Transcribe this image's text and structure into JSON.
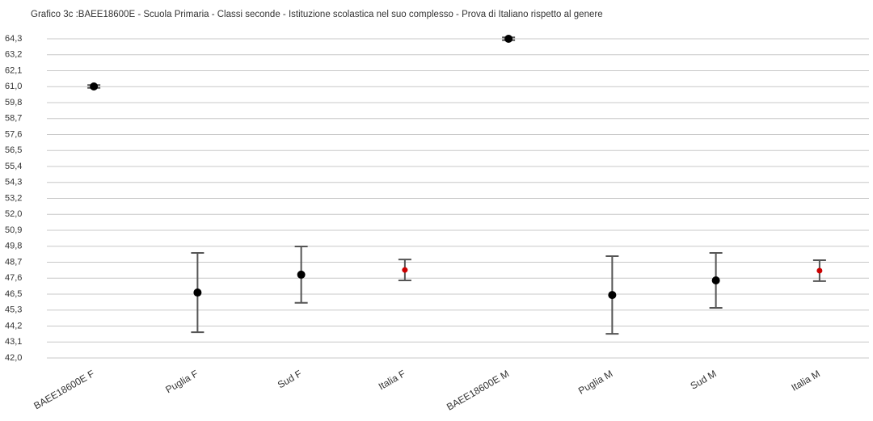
{
  "chart_data": {
    "type": "errorbar",
    "title": "Grafico 3c :BAEE18600E - Scuola Primaria - Classi seconde - Istituzione scolastica nel suo complesso - Prova di Italiano rispetto al genere",
    "categories": [
      "BAEE18600E F",
      "Puglia F",
      "Sud F",
      "Italia F",
      "BAEE18600E M",
      "Puglia M",
      "Sud M",
      "Italia M"
    ],
    "values": [
      60.97,
      46.57,
      47.82,
      48.15,
      64.3,
      46.4,
      47.42,
      48.1
    ],
    "errors": [
      0.1,
      2.77,
      1.97,
      0.73,
      0.1,
      2.71,
      1.92,
      0.73
    ],
    "marker_colors": [
      "#000000",
      "#000000",
      "#000000",
      "#cc0000",
      "#000000",
      "#000000",
      "#000000",
      "#cc0000"
    ],
    "error_color": "#555555",
    "ylim": [
      42.0,
      64.3
    ],
    "yticks": [
      {
        "value": 42.0,
        "label": "42,0"
      },
      {
        "value": 43.115,
        "label": "43,1"
      },
      {
        "value": 44.23,
        "label": "44,2"
      },
      {
        "value": 45.345,
        "label": "45,3"
      },
      {
        "value": 46.46,
        "label": "46,5"
      },
      {
        "value": 47.575,
        "label": "47,6"
      },
      {
        "value": 48.69,
        "label": "48,7"
      },
      {
        "value": 49.805,
        "label": "49,8"
      },
      {
        "value": 50.92,
        "label": "50,9"
      },
      {
        "value": 52.035,
        "label": "52,0"
      },
      {
        "value": 53.15,
        "label": "53,2"
      },
      {
        "value": 54.265,
        "label": "54,3"
      },
      {
        "value": 55.38,
        "label": "55,4"
      },
      {
        "value": 56.495,
        "label": "56,5"
      },
      {
        "value": 57.61,
        "label": "57,6"
      },
      {
        "value": 58.725,
        "label": "58,7"
      },
      {
        "value": 59.84,
        "label": "59,8"
      },
      {
        "value": 60.955,
        "label": "61,0"
      },
      {
        "value": 62.07,
        "label": "62,1"
      },
      {
        "value": 63.185,
        "label": "63,2"
      },
      {
        "value": 64.3,
        "label": "64,3"
      }
    ],
    "grid": true
  }
}
